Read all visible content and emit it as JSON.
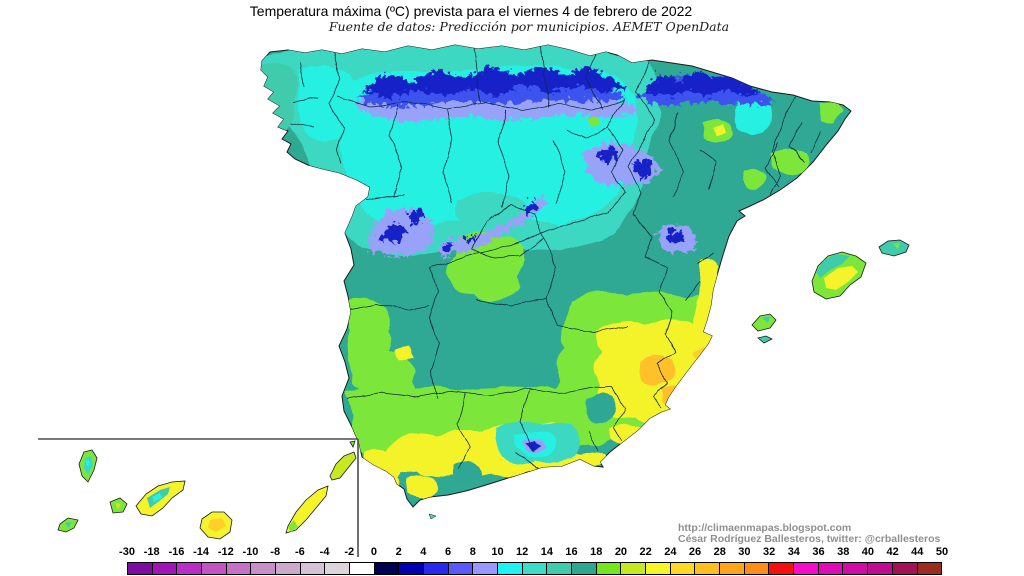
{
  "title": "Temperatura máxima (ºC) prevista para el viernes 4 de febrero de 2022",
  "subtitle": "Fuente de datos: Predicción por municipios. AEMET OpenData",
  "credits": {
    "url": "http://climaenmapas.blogspot.com",
    "author": "César Rodríguez Ballesteros, twitter: @crballesteros"
  },
  "legend": {
    "unit": "ºC",
    "labels": [
      "-30",
      "-18",
      "-16",
      "-14",
      "-12",
      "-10",
      "-8",
      "-6",
      "-4",
      "-2",
      "0",
      "2",
      "4",
      "6",
      "8",
      "10",
      "12",
      "14",
      "16",
      "18",
      "20",
      "22",
      "24",
      "26",
      "28",
      "30",
      "32",
      "34",
      "36",
      "38",
      "40",
      "42",
      "44",
      "50"
    ],
    "colors": [
      "#7C0CA2",
      "#A214B6",
      "#BC2CC6",
      "#C353C3",
      "#C572C5",
      "#C78FC7",
      "#CCA8CC",
      "#D5C2D5",
      "#DCD6DC",
      "#FFFFFF",
      "#000052",
      "#0000B2",
      "#2828EE",
      "#5A5AF8",
      "#9898FF",
      "#1FF2F2",
      "#3CDCC8",
      "#3FCBAD",
      "#2FA78F",
      "#76E61C",
      "#C6E822",
      "#F5F528",
      "#FFD926",
      "#FFBE20",
      "#FFA51C",
      "#FF8C18",
      "#F50F0F",
      "#F50CC8",
      "#DE0CB5",
      "#D00CA4",
      "#C00C90",
      "#A31354",
      "#9B2C20"
    ]
  },
  "map_regions": {
    "mainland": "Península (España)",
    "inset": "Islas Canarias",
    "islands_east": "Islas Baleares"
  },
  "palette": {
    "sea": "#ffffff",
    "navy-0-2": "#1420C8",
    "blue-4-6": "#3D52F0",
    "periwinkle-8-10": "#97A2F8",
    "cyan-10-12": "#28F0E2",
    "turquoise-12-14": "#3CD8C2",
    "lightteal-14-16": "#3FCCAC",
    "teal-16-18": "#2FA894",
    "green-18-20": "#7DE63A",
    "yellowgreen-20-22": "#C8E822",
    "yellow-22-24": "#F4F32C",
    "gold-24-26": "#FFD128",
    "amber-26-28": "#FFC02A",
    "coast-line": "#1a1a1a",
    "border-line": "#0d2b3d",
    "inset-line": "#4d4d4d",
    "title-color": "#000000",
    "credit-color": "#8f8f8f"
  }
}
